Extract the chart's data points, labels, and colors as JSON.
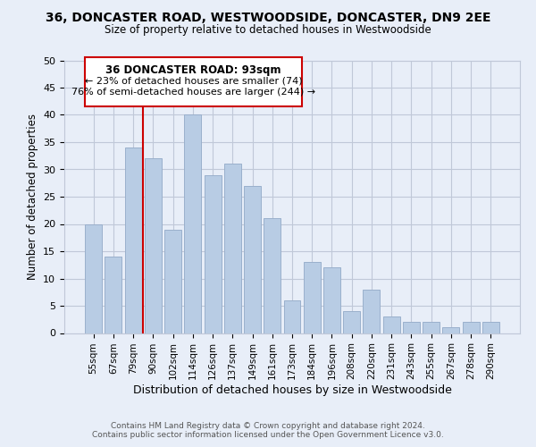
{
  "title_line1": "36, DONCASTER ROAD, WESTWOODSIDE, DONCASTER, DN9 2EE",
  "title_line2": "Size of property relative to detached houses in Westwoodside",
  "xlabel": "Distribution of detached houses by size in Westwoodside",
  "ylabel": "Number of detached properties",
  "footer_line1": "Contains HM Land Registry data © Crown copyright and database right 2024.",
  "footer_line2": "Contains public sector information licensed under the Open Government Licence v3.0.",
  "bar_labels": [
    "55sqm",
    "67sqm",
    "79sqm",
    "90sqm",
    "102sqm",
    "114sqm",
    "126sqm",
    "137sqm",
    "149sqm",
    "161sqm",
    "173sqm",
    "184sqm",
    "196sqm",
    "208sqm",
    "220sqm",
    "231sqm",
    "243sqm",
    "255sqm",
    "267sqm",
    "278sqm",
    "290sqm"
  ],
  "bar_values": [
    20,
    14,
    34,
    32,
    19,
    40,
    29,
    31,
    27,
    21,
    6,
    13,
    12,
    4,
    8,
    3,
    2,
    2,
    1,
    2,
    2
  ],
  "bar_color": "#b8cce4",
  "bar_edge_color": "#9ab0cc",
  "vline_color": "#cc0000",
  "annotation_title": "36 DONCASTER ROAD: 93sqm",
  "annotation_line2": "← 23% of detached houses are smaller (74)",
  "annotation_line3": "76% of semi-detached houses are larger (244) →",
  "annotation_box_edge": "#cc0000",
  "annotation_box_bg": "white",
  "ylim": [
    0,
    50
  ],
  "yticks": [
    0,
    5,
    10,
    15,
    20,
    25,
    30,
    35,
    40,
    45,
    50
  ],
  "grid_color": "#c0c8d8",
  "bg_color": "#e8eef8"
}
